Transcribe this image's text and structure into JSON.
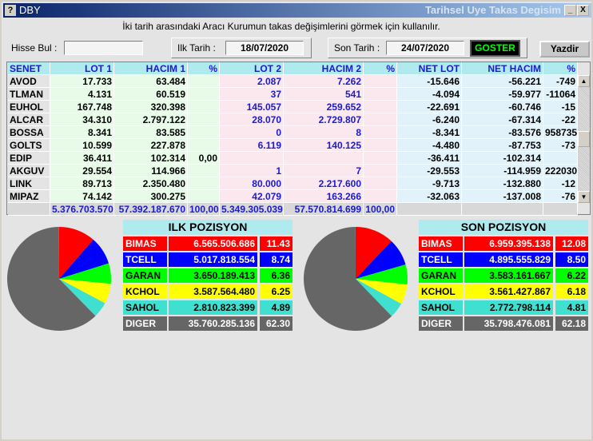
{
  "window": {
    "title": "DBY",
    "right_title": "Tarihsel Uye Takas Degisim",
    "help": "?",
    "minimize": "_",
    "close": "X"
  },
  "description": "İki tarih arasındaki  Aracı Kurumun takas değişimlerini görmek için kullanılır.",
  "controls": {
    "search_label": "Hisse Bul :",
    "search_value": "",
    "start_label": "Ilk Tarih :",
    "start_date": "18/07/2020",
    "end_label": "Son Tarih :",
    "end_date": "24/07/2020",
    "show_button": "GOSTER",
    "print_button": "Yazdir"
  },
  "colors": {
    "green_bg": "#e8fae8",
    "pink_bg": "#fbe8ee",
    "blue_bg": "#e2f2fa",
    "header_bg": "#aeeaee"
  },
  "table": {
    "headers": [
      "SENET",
      "LOT 1",
      "HACIM 1",
      "%",
      "LOT 2",
      "HACIM 2",
      "%",
      "NET LOT",
      "NET HACIM",
      "%"
    ],
    "rows": [
      [
        "AVOD",
        "17.733",
        "63.484",
        "",
        "2.087",
        "7.262",
        "",
        "-15.646",
        "-56.221",
        "-749"
      ],
      [
        "TLMAN",
        "4.131",
        "60.519",
        "",
        "37",
        "541",
        "",
        "-4.094",
        "-59.977",
        "-11064"
      ],
      [
        "EUHOL",
        "167.748",
        "320.398",
        "",
        "145.057",
        "259.652",
        "",
        "-22.691",
        "-60.746",
        "-15"
      ],
      [
        "ALCAR",
        "34.310",
        "2.797.122",
        "",
        "28.070",
        "2.729.807",
        "",
        "-6.240",
        "-67.314",
        "-22"
      ],
      [
        "BOSSA",
        "8.341",
        "83.585",
        "",
        "0",
        "8",
        "",
        "-8.341",
        "-83.576",
        "958735"
      ],
      [
        "GOLTS",
        "10.599",
        "227.878",
        "",
        "6.119",
        "140.125",
        "",
        "-4.480",
        "-87.753",
        "-73"
      ],
      [
        "EDIP",
        "36.411",
        "102.314",
        "0,00",
        "",
        "",
        "",
        "-36.411",
        "-102.314",
        ""
      ],
      [
        "AKGUV",
        "29.554",
        "114.966",
        "",
        "1",
        "7",
        "",
        "-29.553",
        "-114.959",
        "222030"
      ],
      [
        "LINK",
        "89.713",
        "2.350.480",
        "",
        "80.000",
        "2.217.600",
        "",
        "-9.713",
        "-132.880",
        "-12"
      ],
      [
        "MIPAZ",
        "74.142",
        "300.275",
        "",
        "42.079",
        "163.266",
        "",
        "-32.063",
        "-137.008",
        "-76"
      ]
    ],
    "totals": [
      "",
      "5.376.703.570",
      "57.392.187.670",
      "100,00",
      "5.349.305.039",
      "57.570.814.699",
      "100,00",
      "",
      "",
      ""
    ]
  },
  "ilk_pozisyon": {
    "title": "ILK POZISYON",
    "rows": [
      {
        "name": "BIMAS",
        "value": "6.565.506.686",
        "pct": "11.43",
        "pct_num": 11.43,
        "color": "#ff0000",
        "text": "#ffffff"
      },
      {
        "name": "TCELL",
        "value": "5.017.818.554",
        "pct": "8.74",
        "pct_num": 8.74,
        "color": "#0000ff",
        "text": "#ffffff"
      },
      {
        "name": "GARAN",
        "value": "3.650.189.413",
        "pct": "6.36",
        "pct_num": 6.36,
        "color": "#00ff00",
        "text": "#000000"
      },
      {
        "name": "KCHOL",
        "value": "3.587.564.480",
        "pct": "6.25",
        "pct_num": 6.25,
        "color": "#ffff00",
        "text": "#000000"
      },
      {
        "name": "SAHOL",
        "value": "2.810.823.399",
        "pct": "4.89",
        "pct_num": 4.89,
        "color": "#40e0d0",
        "text": "#000000"
      },
      {
        "name": "DIGER",
        "value": "35.760.285.136",
        "pct": "62.30",
        "pct_num": 62.3,
        "color": "#666666",
        "text": "#ffffff"
      }
    ]
  },
  "son_pozisyon": {
    "title": "SON POZISYON",
    "rows": [
      {
        "name": "BIMAS",
        "value": "6.959.395.138",
        "pct": "12.08",
        "pct_num": 12.08,
        "color": "#ff0000",
        "text": "#ffffff"
      },
      {
        "name": "TCELL",
        "value": "4.895.555.829",
        "pct": "8.50",
        "pct_num": 8.5,
        "color": "#0000ff",
        "text": "#ffffff"
      },
      {
        "name": "GARAN",
        "value": "3.583.161.667",
        "pct": "6.22",
        "pct_num": 6.22,
        "color": "#00ff00",
        "text": "#000000"
      },
      {
        "name": "KCHOL",
        "value": "3.561.427.867",
        "pct": "6.18",
        "pct_num": 6.18,
        "color": "#ffff00",
        "text": "#000000"
      },
      {
        "name": "SAHOL",
        "value": "2.772.798.114",
        "pct": "4.81",
        "pct_num": 4.81,
        "color": "#40e0d0",
        "text": "#000000"
      },
      {
        "name": "DIGER",
        "value": "35.798.476.081",
        "pct": "62.18",
        "pct_num": 62.18,
        "color": "#666666",
        "text": "#ffffff"
      }
    ]
  }
}
